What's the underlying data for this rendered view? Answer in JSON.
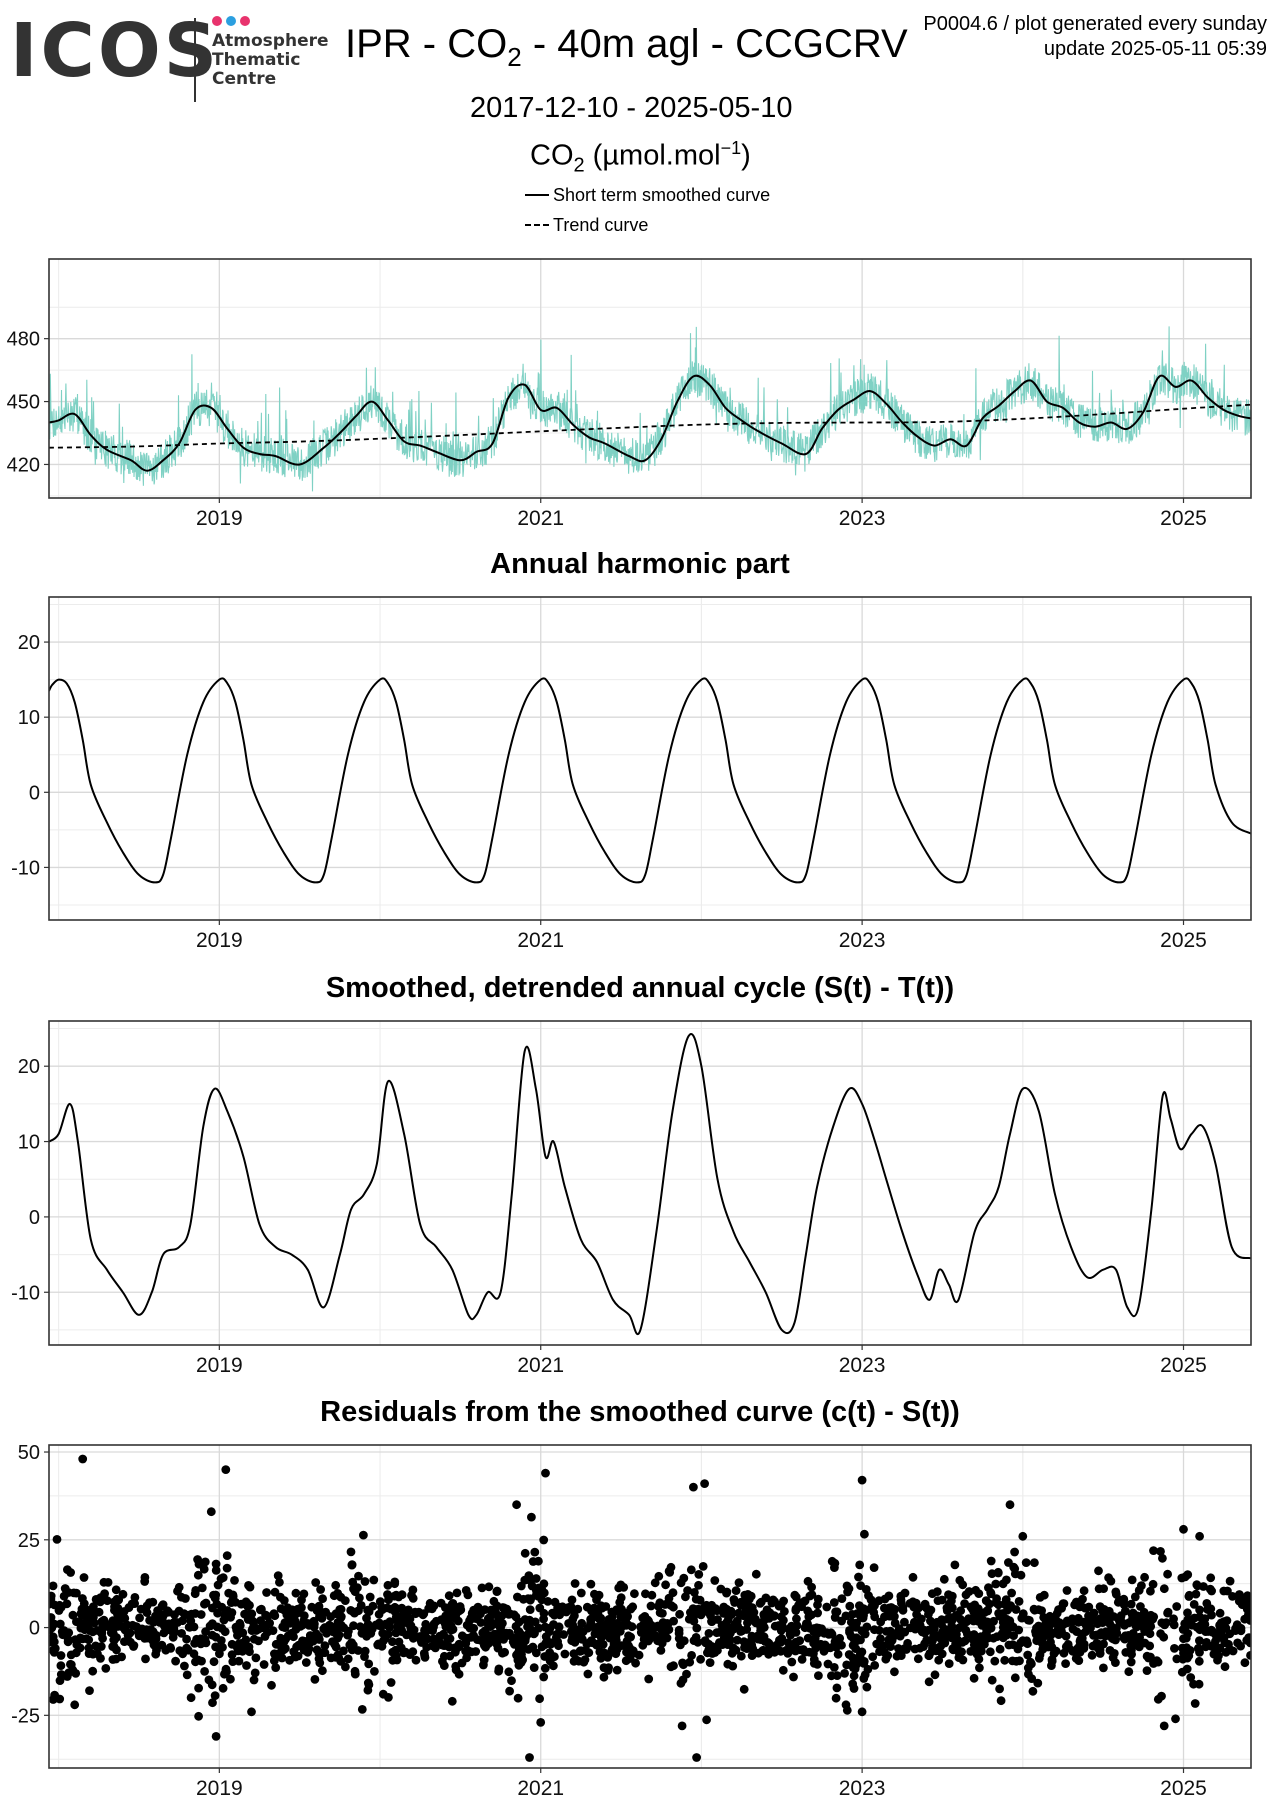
{
  "header": {
    "logo_text": "ICOS",
    "logo_sub": [
      "Atmosphere",
      "Thematic",
      "Centre"
    ],
    "logo_dot_colors": [
      "#e8336d",
      "#2b9fe0",
      "#e8336d"
    ],
    "title_pre": "IPR - CO",
    "title_sub": "2",
    "title_post": " - 40m agl - CCGCRV",
    "product_code": "P0004.6 / plot generated every sunday",
    "update": "update  2025-05-11 05:39",
    "date_range": "2017-12-10 - 2025-05-10",
    "unit_pre": "CO",
    "unit_sub": "2",
    "unit_mid": " (µmol.mol",
    "unit_sup": "−1",
    "unit_post": ")",
    "legend": {
      "short_term": "Short term smoothed curve",
      "trend": "Trend curve"
    }
  },
  "colors": {
    "raw_series": "#7fd1c4",
    "curve": "#000000",
    "grid_major": "#d9d9d9",
    "grid_minor": "#ececec"
  },
  "chart_data": [
    {
      "type": "line",
      "title": "",
      "xlabel": "",
      "ylabel": "",
      "x_ticks": [
        "2019",
        "2021",
        "2023",
        "2025"
      ],
      "y_ticks": [
        420,
        450,
        480
      ],
      "xlim": [
        2017.94,
        2025.42
      ],
      "ylim": [
        404,
        518
      ],
      "grid": true,
      "series": [
        {
          "name": "Short term smoothed curve",
          "style": "solid",
          "x": [
            2017.94,
            2018.0,
            2018.1,
            2018.2,
            2018.3,
            2018.45,
            2018.55,
            2018.65,
            2018.75,
            2018.85,
            2018.95,
            2019.05,
            2019.15,
            2019.25,
            2019.35,
            2019.5,
            2019.65,
            2019.75,
            2019.85,
            2019.95,
            2020.05,
            2020.15,
            2020.25,
            2020.35,
            2020.5,
            2020.6,
            2020.7,
            2020.8,
            2020.9,
            2021.0,
            2021.1,
            2021.2,
            2021.3,
            2021.4,
            2021.55,
            2021.65,
            2021.75,
            2021.85,
            2021.95,
            2022.05,
            2022.15,
            2022.25,
            2022.35,
            2022.5,
            2022.65,
            2022.75,
            2022.85,
            2022.95,
            2023.05,
            2023.15,
            2023.25,
            2023.35,
            2023.45,
            2023.55,
            2023.65,
            2023.75,
            2023.85,
            2023.95,
            2024.05,
            2024.15,
            2024.25,
            2024.35,
            2024.45,
            2024.55,
            2024.65,
            2024.75,
            2024.85,
            2024.95,
            2025.05,
            2025.15,
            2025.25,
            2025.35,
            2025.42
          ],
          "y": [
            440,
            441,
            444,
            434,
            427,
            422,
            417,
            422,
            430,
            446,
            447,
            437,
            428,
            425,
            424,
            420,
            428,
            435,
            443,
            450,
            441,
            431,
            429,
            426,
            422,
            426,
            430,
            452,
            458,
            446,
            447,
            439,
            433,
            430,
            424,
            422,
            432,
            450,
            462,
            458,
            447,
            441,
            436,
            430,
            425,
            437,
            446,
            451,
            455,
            449,
            440,
            433,
            429,
            432,
            429,
            442,
            448,
            455,
            460,
            450,
            447,
            440,
            438,
            440,
            437,
            445,
            462,
            457,
            460,
            452,
            446,
            443,
            442
          ]
        },
        {
          "name": "Trend curve",
          "style": "dashed",
          "x": [
            2017.94,
            2018.5,
            2019.0,
            2019.5,
            2020.0,
            2020.5,
            2021.0,
            2021.5,
            2022.0,
            2022.5,
            2023.0,
            2023.5,
            2024.0,
            2024.5,
            2025.0,
            2025.42
          ],
          "y": [
            428,
            428.6,
            430,
            430.9,
            432.3,
            434,
            435.8,
            437.5,
            439,
            439.8,
            440,
            440.3,
            441.8,
            444,
            446.6,
            448.5
          ]
        },
        {
          "name": "",
          "style": "raw",
          "seed": 7,
          "noise": 9,
          "spike_prob": 0.07,
          "spike_max": 26
        }
      ]
    },
    {
      "type": "line",
      "title": "Annual harmonic part",
      "xlabel": "",
      "ylabel": "",
      "x_ticks": [
        "2019",
        "2021",
        "2023",
        "2025"
      ],
      "y_ticks": [
        -10,
        0,
        10,
        20
      ],
      "xlim": [
        2017.94,
        2025.42
      ],
      "ylim": [
        -17,
        26
      ],
      "grid": true,
      "series": [
        {
          "name": "",
          "style": "solid",
          "x": [
            2017.94,
            2017.96,
            2018.0,
            2018.05,
            2018.1,
            2018.15,
            2018.2,
            2018.3,
            2018.4,
            2018.5,
            2018.6,
            2018.65,
            2018.7,
            2018.8,
            2018.9,
            2019.0,
            2019.05,
            2019.1,
            2019.15,
            2019.2,
            2019.3,
            2019.4,
            2019.5,
            2019.6,
            2019.65,
            2019.7,
            2019.8,
            2019.9,
            2020.0,
            2020.05,
            2020.1,
            2020.15,
            2020.2,
            2020.3,
            2020.4,
            2020.5,
            2020.6,
            2020.65,
            2020.7,
            2020.8,
            2020.9,
            2021.0,
            2021.05,
            2021.1,
            2021.15,
            2021.2,
            2021.3,
            2021.4,
            2021.5,
            2021.6,
            2021.65,
            2021.7,
            2021.8,
            2021.9,
            2022.0,
            2022.05,
            2022.1,
            2022.15,
            2022.2,
            2022.3,
            2022.4,
            2022.5,
            2022.6,
            2022.65,
            2022.7,
            2022.8,
            2022.9,
            2023.0,
            2023.05,
            2023.1,
            2023.15,
            2023.2,
            2023.3,
            2023.4,
            2023.5,
            2023.6,
            2023.65,
            2023.7,
            2023.8,
            2023.9,
            2024.0,
            2024.05,
            2024.1,
            2024.15,
            2024.2,
            2024.3,
            2024.4,
            2024.5,
            2024.6,
            2024.65,
            2024.7,
            2024.8,
            2024.9,
            2025.0,
            2025.05,
            2025.1,
            2025.15,
            2025.2,
            2025.3,
            2025.42
          ],
          "y": [
            13.5,
            14.3,
            15,
            14.5,
            12,
            7,
            1,
            -4,
            -8,
            -11,
            -12,
            -11,
            -6,
            5,
            12,
            15,
            14.5,
            12,
            7,
            1,
            -4,
            -8,
            -11,
            -12,
            -11,
            -6,
            5,
            12,
            15,
            14.5,
            12,
            7,
            1,
            -4,
            -8,
            -11,
            -12,
            -11,
            -6,
            5,
            12,
            15,
            14.5,
            12,
            7,
            1,
            -4,
            -8,
            -11,
            -12,
            -11,
            -6,
            5,
            12,
            15,
            14.5,
            12,
            7,
            1,
            -4,
            -8,
            -11,
            -12,
            -11,
            -6,
            5,
            12,
            15,
            14.5,
            12,
            7,
            1,
            -4,
            -8,
            -11,
            -12,
            -11,
            -6,
            5,
            12,
            15,
            14.5,
            12,
            7,
            1,
            -4,
            -8,
            -11,
            -12,
            -11,
            -6,
            5,
            12,
            15,
            14.5,
            12,
            7,
            1,
            -4,
            -5.5
          ]
        }
      ]
    },
    {
      "type": "line",
      "title": "Smoothed, detrended annual cycle (S(t) - T(t))",
      "xlabel": "",
      "ylabel": "",
      "x_ticks": [
        "2019",
        "2021",
        "2023",
        "2025"
      ],
      "y_ticks": [
        -10,
        0,
        10,
        20
      ],
      "xlim": [
        2017.94,
        2025.42
      ],
      "ylim": [
        -17,
        26
      ],
      "grid": true,
      "series": [
        {
          "name": "",
          "style": "solid",
          "x": [
            2017.94,
            2018.0,
            2018.07,
            2018.12,
            2018.2,
            2018.3,
            2018.4,
            2018.5,
            2018.58,
            2018.65,
            2018.75,
            2018.82,
            2018.9,
            2018.97,
            2019.05,
            2019.15,
            2019.25,
            2019.35,
            2019.45,
            2019.55,
            2019.65,
            2019.75,
            2019.82,
            2019.9,
            2019.98,
            2020.05,
            2020.15,
            2020.25,
            2020.35,
            2020.45,
            2020.55,
            2020.6,
            2020.67,
            2020.75,
            2020.82,
            2020.9,
            2020.97,
            2021.03,
            2021.08,
            2021.15,
            2021.25,
            2021.35,
            2021.45,
            2021.55,
            2021.62,
            2021.72,
            2021.82,
            2021.92,
            2022.0,
            2022.1,
            2022.2,
            2022.3,
            2022.4,
            2022.5,
            2022.58,
            2022.65,
            2022.72,
            2022.82,
            2022.92,
            2023.0,
            2023.08,
            2023.15,
            2023.25,
            2023.35,
            2023.42,
            2023.48,
            2023.54,
            2023.6,
            2023.7,
            2023.78,
            2023.85,
            2023.92,
            2024.0,
            2024.1,
            2024.2,
            2024.3,
            2024.4,
            2024.5,
            2024.58,
            2024.65,
            2024.72,
            2024.8,
            2024.87,
            2024.92,
            2024.98,
            2025.05,
            2025.12,
            2025.2,
            2025.3,
            2025.42
          ],
          "y": [
            10,
            11,
            15,
            10,
            -3,
            -7,
            -10,
            -13,
            -10,
            -5,
            -4,
            -1,
            12,
            17,
            14,
            8,
            -1,
            -4,
            -5,
            -7,
            -12,
            -5,
            1,
            3,
            7,
            18,
            11,
            -1,
            -4,
            -7,
            -13,
            -13,
            -10,
            -10,
            3,
            22,
            17,
            8,
            10,
            4,
            -3,
            -6,
            -11,
            -13,
            -15,
            -2,
            14,
            24,
            20,
            5,
            -2,
            -6,
            -10,
            -15,
            -14,
            -5,
            4,
            12,
            17,
            15,
            10,
            5,
            -2,
            -8,
            -11,
            -7,
            -9,
            -11,
            -2,
            1,
            4,
            11,
            17,
            14,
            3,
            -4,
            -8,
            -7,
            -7,
            -12,
            -12,
            1,
            16,
            13,
            9,
            11,
            12,
            7,
            -4,
            -5.5
          ]
        }
      ]
    },
    {
      "type": "scatter",
      "title": "Residuals from the smoothed curve (c(t) - S(t))",
      "xlabel": "",
      "ylabel": "",
      "x_ticks": [
        "2019",
        "2021",
        "2023",
        "2025"
      ],
      "y_ticks": [
        -25,
        0,
        25,
        50
      ],
      "xlim": [
        2017.94,
        2025.42
      ],
      "ylim": [
        -40,
        52
      ],
      "grid": true,
      "series": [
        {
          "name": "",
          "style": "points",
          "seed": 3,
          "sd": 7,
          "outliers": [
            [
              2018.15,
              48
            ],
            [
              2019.04,
              45
            ],
            [
              2018.95,
              33
            ],
            [
              2018.98,
              -31
            ],
            [
              2020.85,
              35
            ],
            [
              2020.93,
              -37
            ],
            [
              2021.03,
              44
            ],
            [
              2021.0,
              -27
            ],
            [
              2021.95,
              40
            ],
            [
              2022.02,
              41
            ],
            [
              2021.97,
              -37
            ],
            [
              2023.0,
              42
            ],
            [
              2023.0,
              -24
            ],
            [
              2023.92,
              35
            ],
            [
              2024.0,
              26
            ],
            [
              2024.88,
              -28
            ],
            [
              2024.95,
              -26
            ],
            [
              2025.0,
              28
            ],
            [
              2025.1,
              26
            ],
            [
              2019.2,
              -24
            ],
            [
              2020.45,
              -21
            ],
            [
              2021.88,
              -28
            ],
            [
              2022.9,
              -22
            ],
            [
              2018.1,
              -22
            ]
          ]
        }
      ]
    }
  ]
}
